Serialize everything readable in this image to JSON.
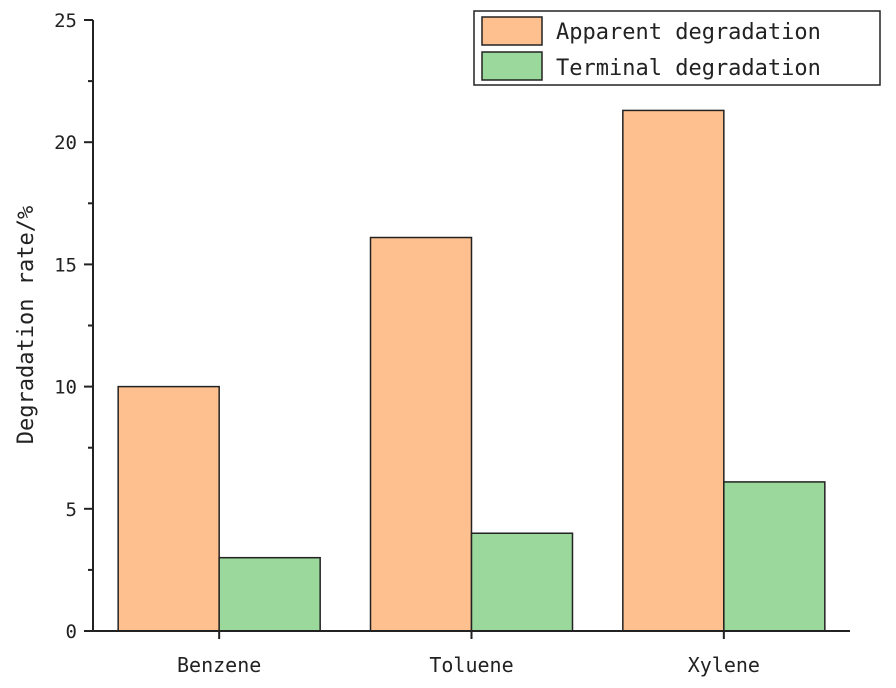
{
  "chart_data": {
    "type": "bar",
    "title": "",
    "xlabel": "",
    "ylabel": "Degradation rate/%",
    "ylim": [
      0,
      25
    ],
    "yticks": [
      "0",
      "5",
      "10",
      "15",
      "20",
      "25"
    ],
    "categories": [
      "Benzene",
      "Toluene",
      "Xylene"
    ],
    "series": [
      {
        "name": "Apparent degradation",
        "color": "#FFC08F",
        "values": [
          10.0,
          16.1,
          21.3
        ]
      },
      {
        "name": "Terminal degradation",
        "color": "#9BD89B",
        "values": [
          3.0,
          4.0,
          6.1
        ]
      }
    ],
    "grid": false,
    "legend_position": "top-right"
  }
}
